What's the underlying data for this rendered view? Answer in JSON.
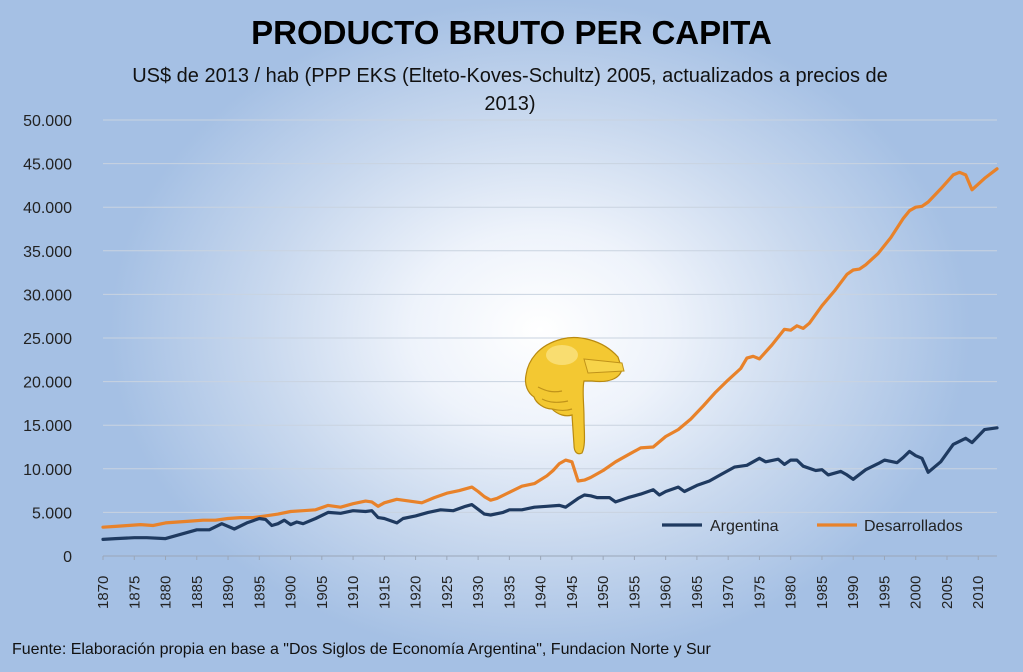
{
  "title": "PRODUCTO BRUTO PER CAPITA",
  "subtitle": "US$ de 2013 / hab (PPP EKS (Elteto-Koves-Schultz) 2005, actualizados a precios de 2013)",
  "source": "Fuente: Elaboración propia en base a \"Dos Siglos de Economía Argentina\", Fundacion Norte y Sur",
  "pointer_icon": "pointing-hand-icon",
  "colors": {
    "argentina": "#1f3a60",
    "desarrollados": "#e8822a",
    "grid": "#c9d3e0"
  },
  "chart_data": {
    "type": "line",
    "title": "PRODUCTO BRUTO PER CAPITA",
    "ylim": [
      0,
      50000
    ],
    "xlim": [
      1870,
      2013
    ],
    "y_ticks": [
      "0",
      "5.000",
      "10.000",
      "15.000",
      "20.000",
      "25.000",
      "30.000",
      "35.000",
      "40.000",
      "45.000",
      "50.000"
    ],
    "x_ticks": [
      "1870",
      "1875",
      "1880",
      "1885",
      "1890",
      "1895",
      "1900",
      "1905",
      "1910",
      "1915",
      "1920",
      "1925",
      "1930",
      "1935",
      "1940",
      "1945",
      "1950",
      "1955",
      "1960",
      "1965",
      "1970",
      "1975",
      "1980",
      "1985",
      "1990",
      "1995",
      "2000",
      "2005",
      "2010"
    ],
    "grid": true,
    "legend_position": "bottom-right",
    "series": [
      {
        "name": "Argentina",
        "x": [
          1870,
          1872,
          1875,
          1877,
          1880,
          1882,
          1885,
          1887,
          1889,
          1891,
          1893,
          1895,
          1896,
          1897,
          1898,
          1899,
          1900,
          1901,
          1902,
          1904,
          1906,
          1908,
          1910,
          1912,
          1913,
          1914,
          1915,
          1917,
          1918,
          1920,
          1922,
          1924,
          1926,
          1928,
          1929,
          1931,
          1932,
          1934,
          1935,
          1937,
          1939,
          1941,
          1943,
          1944,
          1945,
          1946,
          1947,
          1948,
          1949,
          1951,
          1952,
          1954,
          1956,
          1958,
          1959,
          1960,
          1962,
          1963,
          1965,
          1967,
          1969,
          1971,
          1973,
          1975,
          1976,
          1978,
          1979,
          1980,
          1981,
          1982,
          1984,
          1985,
          1986,
          1988,
          1989,
          1990,
          1992,
          1994,
          1995,
          1997,
          1998,
          1999,
          2000,
          2001,
          2002,
          2004,
          2006,
          2008,
          2009,
          2011,
          2013
        ],
        "y": [
          1900,
          2000,
          2100,
          2100,
          2000,
          2400,
          3000,
          3000,
          3700,
          3100,
          3800,
          4300,
          4200,
          3500,
          3700,
          4100,
          3600,
          3900,
          3700,
          4300,
          5000,
          4900,
          5200,
          5100,
          5200,
          4400,
          4300,
          3800,
          4300,
          4600,
          5000,
          5300,
          5200,
          5700,
          5900,
          4800,
          4700,
          5000,
          5300,
          5300,
          5600,
          5700,
          5800,
          5600,
          6100,
          6600,
          7000,
          6900,
          6700,
          6700,
          6200,
          6700,
          7100,
          7600,
          7000,
          7400,
          7900,
          7400,
          8100,
          8600,
          9400,
          10200,
          10400,
          11200,
          10800,
          11100,
          10500,
          11000,
          11000,
          10300,
          9800,
          9900,
          9300,
          9700,
          9300,
          8800,
          9900,
          10600,
          11000,
          10700,
          11300,
          12000,
          11500,
          11200,
          9600,
          10800,
          12800,
          13500,
          13000,
          14500,
          14700
        ]
      },
      {
        "name": "Desarrollados",
        "x": [
          1870,
          1872,
          1874,
          1876,
          1878,
          1880,
          1882,
          1884,
          1886,
          1888,
          1890,
          1892,
          1894,
          1896,
          1898,
          1900,
          1902,
          1904,
          1906,
          1908,
          1910,
          1912,
          1913,
          1914,
          1915,
          1917,
          1919,
          1921,
          1923,
          1925,
          1927,
          1929,
          1930,
          1931,
          1932,
          1933,
          1935,
          1937,
          1939,
          1941,
          1942,
          1943,
          1944,
          1945,
          1946,
          1947,
          1948,
          1950,
          1952,
          1954,
          1956,
          1958,
          1960,
          1962,
          1964,
          1966,
          1968,
          1970,
          1972,
          1973,
          1974,
          1975,
          1977,
          1979,
          1980,
          1981,
          1982,
          1983,
          1985,
          1987,
          1989,
          1990,
          1991,
          1992,
          1994,
          1996,
          1998,
          1999,
          2000,
          2001,
          2002,
          2004,
          2006,
          2007,
          2008,
          2009,
          2011,
          2013
        ],
        "y": [
          3300,
          3400,
          3500,
          3600,
          3500,
          3800,
          3900,
          4000,
          4100,
          4100,
          4300,
          4400,
          4400,
          4600,
          4800,
          5100,
          5200,
          5300,
          5800,
          5600,
          6000,
          6300,
          6200,
          5700,
          6100,
          6500,
          6300,
          6100,
          6700,
          7200,
          7500,
          7900,
          7400,
          6800,
          6400,
          6600,
          7300,
          8000,
          8300,
          9200,
          9800,
          10600,
          11000,
          10800,
          8600,
          8700,
          9000,
          9800,
          10800,
          11600,
          12400,
          12500,
          13700,
          14500,
          15700,
          17200,
          18800,
          20200,
          21500,
          22700,
          22900,
          22600,
          24200,
          26000,
          25900,
          26400,
          26100,
          26700,
          28700,
          30400,
          32300,
          32800,
          32900,
          33400,
          34700,
          36500,
          38700,
          39600,
          40000,
          40100,
          40600,
          42100,
          43700,
          44000,
          43700,
          42000,
          43300,
          44400
        ]
      }
    ]
  }
}
